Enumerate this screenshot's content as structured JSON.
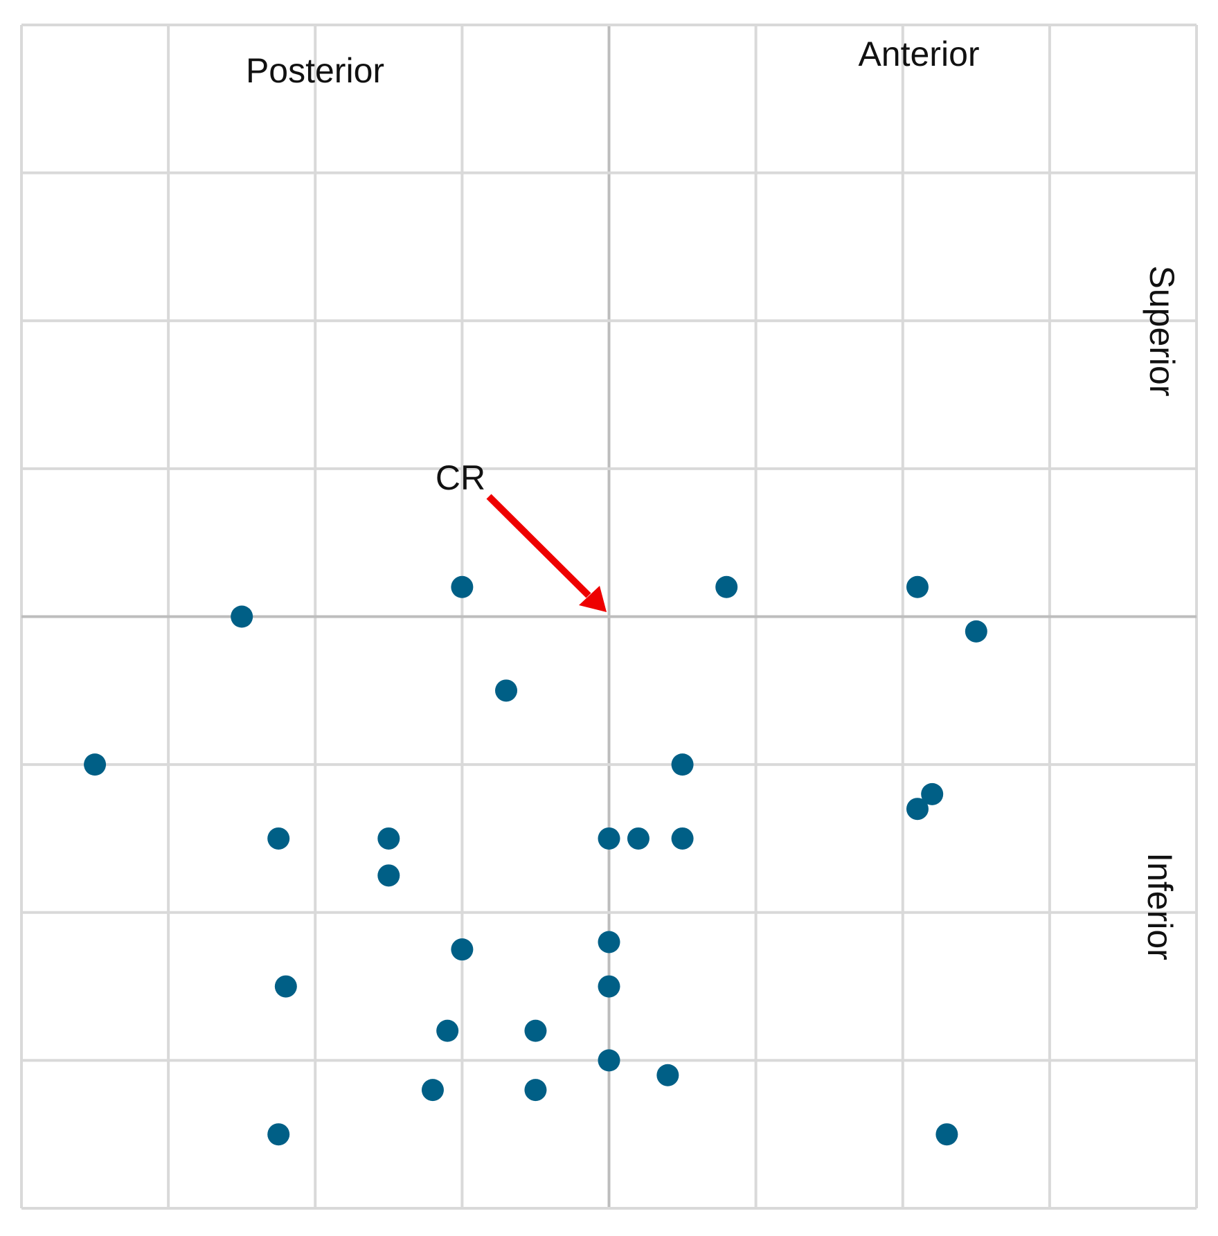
{
  "chart_data": {
    "type": "scatter",
    "xlim": [
      -4,
      4
    ],
    "ylim": [
      -4,
      4
    ],
    "xticks": [
      -4,
      -3,
      -2,
      -1,
      0,
      1,
      2,
      3,
      4
    ],
    "yticks": [
      -4,
      -3,
      -2,
      -1,
      0,
      1,
      2,
      3,
      4
    ],
    "grid": true,
    "annotations": [
      "Posterior",
      "Anterior",
      "Superior",
      "Inferior",
      "CR"
    ],
    "series": [
      {
        "color": "#005f86",
        "x": [
          -1.0,
          -2.5,
          0.8,
          2.1,
          2.5,
          -0.7,
          -3.5,
          0.5,
          2.2,
          2.1,
          -2.25,
          -1.5,
          0,
          0.2,
          0.5,
          -1.5,
          -1.0,
          0,
          -2.2,
          0,
          -1.1,
          -0.5,
          0,
          0.4,
          -1.2,
          -0.5,
          -2.25,
          2.3
        ],
        "values": [
          0.2,
          0,
          0.2,
          0.2,
          -0.1,
          -0.5,
          -1.0,
          -1.0,
          -1.2,
          -1.3,
          -1.5,
          -1.5,
          -1.5,
          -1.5,
          -1.5,
          -1.75,
          -2.25,
          -2.2,
          -2.5,
          -2.5,
          -2.8,
          -2.8,
          -3.0,
          -3.1,
          -3.2,
          -3.2,
          -3.5,
          -3.5
        ]
      }
    ]
  }
}
